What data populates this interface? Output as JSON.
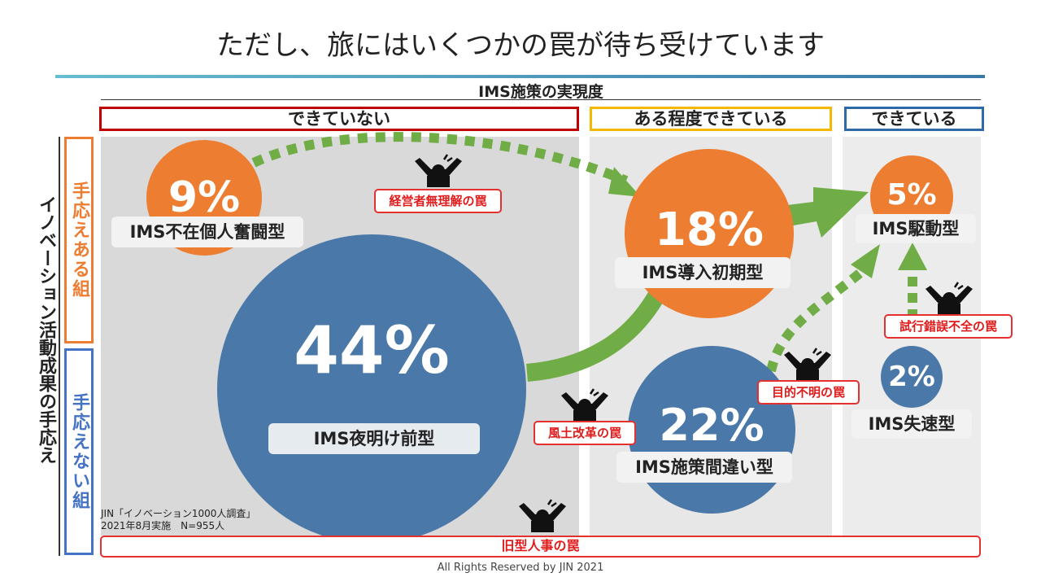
{
  "title": "ただし、旅にはいくつかの罠が待ち受けています",
  "x_axis_title": "IMS施策の実現度",
  "y_axis_title": "イノベーション活動成果の手応え",
  "columns": [
    {
      "label": "できていない",
      "color": "#c00000"
    },
    {
      "label": "ある程度できている",
      "color": "#f5b800"
    },
    {
      "label": "できている",
      "color": "#2e6aa8"
    }
  ],
  "rows": [
    {
      "label": "手応えある組",
      "color": "#ed7d31"
    },
    {
      "label": "手応えない組",
      "color": "#4472c4"
    }
  ],
  "types": [
    {
      "percent": "9%",
      "name": "IMS不在個人奮闘型",
      "color": "#ed7d31"
    },
    {
      "percent": "44%",
      "name": "IMS夜明け前型",
      "color": "#4a78a8"
    },
    {
      "percent": "18%",
      "name": "IMS導入初期型",
      "color": "#ed7d31"
    },
    {
      "percent": "22%",
      "name": "IMS施策間違い型",
      "color": "#4a78a8"
    },
    {
      "percent": "5%",
      "name": "IMS駆動型",
      "color": "#ed7d31"
    },
    {
      "percent": "2%",
      "name": "IMS失速型",
      "color": "#4a78a8"
    }
  ],
  "traps": {
    "management": "経営者無理解の罠",
    "culture": "風土改革の罠",
    "purpose": "目的不明の罠",
    "trial": "試行錯誤不全の罠",
    "hr": "旧型人事の罠"
  },
  "source": {
    "line1": "JIN「イノベーション1000人調査」",
    "line2": "2021年8月実施　N=955人"
  },
  "footer": "All Rights Reserved by JIN 2021",
  "arrow_color": "#70ad47"
}
